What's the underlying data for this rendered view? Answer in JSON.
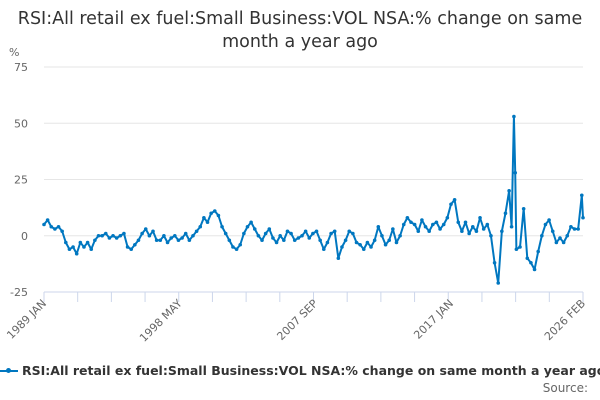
{
  "chart_data": {
    "type": "line",
    "title": "RSI:All retail ex fuel:Small Business:VOL NSA:% change on same month a year ago",
    "ylabel": "%",
    "xlabel": "",
    "ylim": [
      -25,
      75
    ],
    "yticks": [
      -25,
      0,
      25,
      50,
      75
    ],
    "xlim": [
      1989.0,
      2026.083
    ],
    "xticks": [
      {
        "x": 1989.0,
        "label": "1989 JAN"
      },
      {
        "x": 1998.33,
        "label": "1998 MAY"
      },
      {
        "x": 2007.67,
        "label": "2007 SEP"
      },
      {
        "x": 2017.0,
        "label": "2017 JAN"
      },
      {
        "x": 2026.083,
        "label": "2026 FEB"
      }
    ],
    "grid": true,
    "legend": "bottom",
    "series": [
      {
        "name": "RSI:All retail ex fuel:Small Business:VOL NSA:% change on same month a year ago",
        "color": "#0077c0",
        "points": [
          [
            1989.0,
            5
          ],
          [
            1989.25,
            7
          ],
          [
            1989.5,
            4
          ],
          [
            1989.75,
            3
          ],
          [
            1990.0,
            4
          ],
          [
            1990.25,
            2
          ],
          [
            1990.5,
            -3
          ],
          [
            1990.75,
            -6
          ],
          [
            1991.0,
            -5
          ],
          [
            1991.25,
            -8
          ],
          [
            1991.5,
            -3
          ],
          [
            1991.75,
            -5
          ],
          [
            1992.0,
            -3
          ],
          [
            1992.25,
            -6
          ],
          [
            1992.5,
            -2
          ],
          [
            1992.75,
            0
          ],
          [
            1993.0,
            0
          ],
          [
            1993.25,
            1
          ],
          [
            1993.5,
            -1
          ],
          [
            1993.75,
            0
          ],
          [
            1994.0,
            -1
          ],
          [
            1994.25,
            0
          ],
          [
            1994.5,
            1
          ],
          [
            1994.75,
            -5
          ],
          [
            1995.0,
            -6
          ],
          [
            1995.25,
            -4
          ],
          [
            1995.5,
            -2
          ],
          [
            1995.75,
            1
          ],
          [
            1996.0,
            3
          ],
          [
            1996.25,
            0
          ],
          [
            1996.5,
            2
          ],
          [
            1996.75,
            -2
          ],
          [
            1997.0,
            -2
          ],
          [
            1997.25,
            0
          ],
          [
            1997.5,
            -3
          ],
          [
            1997.75,
            -1
          ],
          [
            1998.0,
            0
          ],
          [
            1998.25,
            -2
          ],
          [
            1998.5,
            -1
          ],
          [
            1998.75,
            1
          ],
          [
            1999.0,
            -2
          ],
          [
            1999.25,
            0
          ],
          [
            1999.5,
            2
          ],
          [
            1999.75,
            4
          ],
          [
            2000.0,
            8
          ],
          [
            2000.25,
            6
          ],
          [
            2000.5,
            10
          ],
          [
            2000.75,
            11
          ],
          [
            2001.0,
            9
          ],
          [
            2001.25,
            4
          ],
          [
            2001.5,
            1
          ],
          [
            2001.75,
            -2
          ],
          [
            2002.0,
            -5
          ],
          [
            2002.25,
            -6
          ],
          [
            2002.5,
            -4
          ],
          [
            2002.75,
            1
          ],
          [
            2003.0,
            4
          ],
          [
            2003.25,
            6
          ],
          [
            2003.5,
            3
          ],
          [
            2003.75,
            0
          ],
          [
            2004.0,
            -2
          ],
          [
            2004.25,
            1
          ],
          [
            2004.5,
            3
          ],
          [
            2004.75,
            -1
          ],
          [
            2005.0,
            -3
          ],
          [
            2005.25,
            0
          ],
          [
            2005.5,
            -2
          ],
          [
            2005.75,
            2
          ],
          [
            2006.0,
            1
          ],
          [
            2006.25,
            -2
          ],
          [
            2006.5,
            -1
          ],
          [
            2006.75,
            0
          ],
          [
            2007.0,
            2
          ],
          [
            2007.25,
            -1
          ],
          [
            2007.5,
            1
          ],
          [
            2007.75,
            2
          ],
          [
            2008.0,
            -2
          ],
          [
            2008.25,
            -6
          ],
          [
            2008.5,
            -3
          ],
          [
            2008.75,
            1
          ],
          [
            2009.0,
            2
          ],
          [
            2009.25,
            -10
          ],
          [
            2009.5,
            -5
          ],
          [
            2009.75,
            -2
          ],
          [
            2010.0,
            2
          ],
          [
            2010.25,
            1
          ],
          [
            2010.5,
            -3
          ],
          [
            2010.75,
            -4
          ],
          [
            2011.0,
            -6
          ],
          [
            2011.25,
            -3
          ],
          [
            2011.5,
            -5
          ],
          [
            2011.75,
            -2
          ],
          [
            2012.0,
            4
          ],
          [
            2012.25,
            0
          ],
          [
            2012.5,
            -4
          ],
          [
            2012.75,
            -2
          ],
          [
            2013.0,
            3
          ],
          [
            2013.25,
            -3
          ],
          [
            2013.5,
            0
          ],
          [
            2013.75,
            5
          ],
          [
            2014.0,
            8
          ],
          [
            2014.25,
            6
          ],
          [
            2014.5,
            5
          ],
          [
            2014.75,
            2
          ],
          [
            2015.0,
            7
          ],
          [
            2015.25,
            4
          ],
          [
            2015.5,
            2
          ],
          [
            2015.75,
            5
          ],
          [
            2016.0,
            6
          ],
          [
            2016.25,
            3
          ],
          [
            2016.5,
            5
          ],
          [
            2016.75,
            8
          ],
          [
            2017.0,
            14
          ],
          [
            2017.25,
            16
          ],
          [
            2017.5,
            6
          ],
          [
            2017.75,
            2
          ],
          [
            2018.0,
            6
          ],
          [
            2018.25,
            1
          ],
          [
            2018.5,
            4
          ],
          [
            2018.75,
            2
          ],
          [
            2019.0,
            8
          ],
          [
            2019.25,
            3
          ],
          [
            2019.5,
            5
          ],
          [
            2019.75,
            0
          ],
          [
            2020.0,
            -12
          ],
          [
            2020.25,
            -21
          ],
          [
            2020.5,
            2
          ],
          [
            2020.75,
            10
          ],
          [
            2021.0,
            20
          ],
          [
            2021.17,
            4
          ],
          [
            2021.33,
            53
          ],
          [
            2021.42,
            28
          ],
          [
            2021.5,
            -6
          ],
          [
            2021.75,
            -5
          ],
          [
            2022.0,
            12
          ],
          [
            2022.25,
            -10
          ],
          [
            2022.5,
            -12
          ],
          [
            2022.75,
            -15
          ],
          [
            2023.0,
            -7
          ],
          [
            2023.25,
            0
          ],
          [
            2023.5,
            5
          ],
          [
            2023.75,
            7
          ],
          [
            2024.0,
            2
          ],
          [
            2024.25,
            -3
          ],
          [
            2024.5,
            -1
          ],
          [
            2024.75,
            -3
          ],
          [
            2025.0,
            0
          ],
          [
            2025.25,
            4
          ],
          [
            2025.5,
            3
          ],
          [
            2025.75,
            3
          ],
          [
            2026.0,
            18
          ],
          [
            2026.083,
            8
          ]
        ]
      }
    ]
  },
  "source_label": "Source:"
}
